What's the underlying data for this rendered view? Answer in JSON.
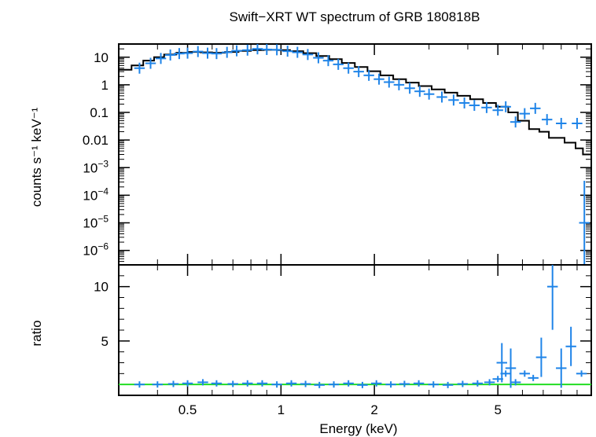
{
  "chart_data": [
    {
      "type": "line",
      "title": "Swift−XRT WT spectrum of GRB 180818B",
      "ylabel": "counts s⁻¹ keV⁻¹",
      "xlabel": "",
      "xscale": "log",
      "yscale": "log",
      "xlim": [
        0.3,
        10
      ],
      "ylim": [
        3e-07,
        30
      ],
      "y_ticks": [
        {
          "v": 10,
          "base": "10",
          "exp": ""
        },
        {
          "v": 1,
          "base": "1",
          "exp": ""
        },
        {
          "v": 0.1,
          "base": "0.1",
          "exp": ""
        },
        {
          "v": 0.01,
          "base": "0.01",
          "exp": ""
        },
        {
          "v": 0.001,
          "base": "10",
          "exp": "−3"
        },
        {
          "v": 0.0001,
          "base": "10",
          "exp": "−4"
        },
        {
          "v": 1e-05,
          "base": "10",
          "exp": "−5"
        },
        {
          "v": 1e-06,
          "base": "10",
          "exp": "−6"
        }
      ],
      "series": [
        {
          "name": "",
          "style": "errorbars",
          "color": "#1f84e8",
          "x": [
            0.35,
            0.38,
            0.41,
            0.44,
            0.47,
            0.5,
            0.54,
            0.58,
            0.62,
            0.67,
            0.72,
            0.78,
            0.84,
            0.9,
            0.97,
            1.05,
            1.13,
            1.22,
            1.32,
            1.42,
            1.53,
            1.65,
            1.78,
            1.92,
            2.07,
            2.23,
            2.4,
            2.6,
            2.8,
            3.0,
            3.3,
            3.6,
            3.9,
            4.2,
            4.6,
            5.0,
            5.3,
            5.7,
            6.1,
            6.6,
            7.2,
            8.0,
            9.0,
            9.5
          ],
          "y": [
            4.0,
            6.0,
            9.0,
            12.0,
            13.5,
            14.0,
            16.0,
            14.0,
            13.5,
            15.0,
            17.0,
            18.0,
            20.0,
            19.0,
            18.5,
            16.5,
            15.0,
            12.5,
            9.5,
            7.5,
            5.5,
            4.0,
            3.0,
            2.2,
            1.6,
            1.25,
            1.0,
            0.75,
            0.58,
            0.46,
            0.36,
            0.28,
            0.22,
            0.18,
            0.15,
            0.12,
            0.16,
            0.045,
            0.09,
            0.14,
            0.055,
            0.04,
            0.04,
            1e-05
          ]
        },
        {
          "name": "",
          "style": "step",
          "color": "#000000",
          "x": [
            0.3,
            0.33,
            0.36,
            0.39,
            0.42,
            0.46,
            0.5,
            0.55,
            0.6,
            0.66,
            0.73,
            0.8,
            0.88,
            0.97,
            1.07,
            1.18,
            1.3,
            1.43,
            1.57,
            1.73,
            1.9,
            2.09,
            2.3,
            2.53,
            2.78,
            3.06,
            3.37,
            3.7,
            4.07,
            4.48,
            4.93,
            5.4,
            5.8,
            6.3,
            6.8,
            7.3,
            8.2,
            8.9,
            9.4,
            10
          ],
          "y": [
            3.5,
            5.0,
            7.5,
            10.0,
            12.5,
            14.5,
            15.5,
            15.0,
            14.5,
            15.5,
            17.0,
            18.0,
            18.5,
            18.0,
            16.5,
            14.0,
            11.0,
            8.5,
            6.2,
            4.4,
            3.1,
            2.2,
            1.6,
            1.2,
            0.9,
            0.68,
            0.52,
            0.4,
            0.3,
            0.22,
            0.16,
            0.1,
            0.05,
            0.025,
            0.02,
            0.012,
            0.008,
            0.005,
            0.003,
            0.003
          ]
        }
      ]
    },
    {
      "type": "line",
      "title": "",
      "xlabel": "Energy (keV)",
      "ylabel": "ratio",
      "xscale": "log",
      "xlim": [
        0.3,
        10
      ],
      "ylim": [
        0,
        12
      ],
      "x_ticks": [
        {
          "v": 0.5,
          "label": "0.5"
        },
        {
          "v": 1,
          "label": "1"
        },
        {
          "v": 2,
          "label": "2"
        },
        {
          "v": 5,
          "label": "5"
        }
      ],
      "y_ticks": [
        {
          "v": 10,
          "label": "10"
        },
        {
          "v": 5,
          "label": "5"
        }
      ],
      "reference_line": {
        "y": 1,
        "color": "#22dd22"
      },
      "series": [
        {
          "name": "",
          "style": "errorbars",
          "color": "#1f84e8",
          "x": [
            0.35,
            0.4,
            0.45,
            0.5,
            0.56,
            0.62,
            0.7,
            0.78,
            0.87,
            0.97,
            1.08,
            1.2,
            1.33,
            1.48,
            1.65,
            1.83,
            2.03,
            2.26,
            2.5,
            2.78,
            3.1,
            3.45,
            3.85,
            4.3,
            4.7,
            5.0,
            5.15,
            5.3,
            5.5,
            5.7,
            6.1,
            6.5,
            6.9,
            7.5,
            8.0,
            8.6,
            9.3
          ],
          "y": [
            1.0,
            1.0,
            1.05,
            1.1,
            1.2,
            1.1,
            1.05,
            1.1,
            1.1,
            1.0,
            1.1,
            1.05,
            0.95,
            1.0,
            1.1,
            0.95,
            1.1,
            1.0,
            1.05,
            1.1,
            1.0,
            0.95,
            1.05,
            1.1,
            1.2,
            1.5,
            3.0,
            2.0,
            2.5,
            1.2,
            2.0,
            1.6,
            3.5,
            10.0,
            2.5,
            4.5,
            2.0
          ]
        }
      ]
    }
  ]
}
